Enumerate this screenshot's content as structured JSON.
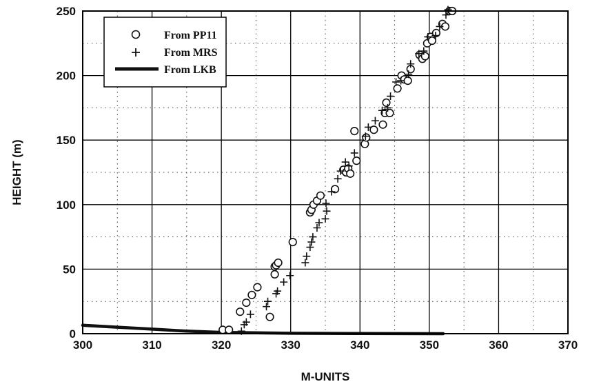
{
  "chart_data": {
    "type": "scatter",
    "title": "",
    "xlabel": "M-UNITS",
    "ylabel": "HEIGHT (m)",
    "xlim": [
      300,
      370
    ],
    "ylim": [
      0,
      250
    ],
    "xticks": [
      "300",
      "310",
      "320",
      "330",
      "340",
      "350",
      "360",
      "370"
    ],
    "yticks": [
      "0",
      "50",
      "100",
      "150",
      "200",
      "250"
    ],
    "grid": "major solid, minor dotted",
    "legend_position": "top-left",
    "series": [
      {
        "name": "From PP11",
        "marker": "circle",
        "points": [
          [
            320.2,
            3
          ],
          [
            321.1,
            3
          ],
          [
            322.7,
            17
          ],
          [
            323.6,
            24
          ],
          [
            324.4,
            30
          ],
          [
            325.2,
            36
          ],
          [
            327.0,
            13
          ],
          [
            327.7,
            46
          ],
          [
            327.7,
            52
          ],
          [
            327.9,
            53
          ],
          [
            328.2,
            55
          ],
          [
            330.3,
            71
          ],
          [
            332.8,
            94
          ],
          [
            333.0,
            96
          ],
          [
            333.3,
            100
          ],
          [
            333.8,
            103
          ],
          [
            334.3,
            107
          ],
          [
            336.4,
            112
          ],
          [
            337.6,
            127
          ],
          [
            338.0,
            125
          ],
          [
            338.3,
            128
          ],
          [
            338.6,
            124
          ],
          [
            339.2,
            157
          ],
          [
            339.5,
            134
          ],
          [
            340.7,
            147
          ],
          [
            340.9,
            152
          ],
          [
            342.0,
            158
          ],
          [
            343.3,
            162
          ],
          [
            343.6,
            171
          ],
          [
            343.8,
            179
          ],
          [
            344.3,
            171
          ],
          [
            345.4,
            190
          ],
          [
            346.0,
            200
          ],
          [
            346.4,
            197
          ],
          [
            346.9,
            196
          ],
          [
            347.3,
            205
          ],
          [
            348.6,
            216
          ],
          [
            349.0,
            213
          ],
          [
            349.4,
            215
          ],
          [
            349.7,
            225
          ],
          [
            350.2,
            230
          ],
          [
            350.4,
            227
          ],
          [
            351.0,
            233
          ],
          [
            351.9,
            240
          ],
          [
            352.3,
            238
          ],
          [
            352.9,
            250
          ],
          [
            353.3,
            250
          ]
        ]
      },
      {
        "name": "From MRS",
        "marker": "plus",
        "points": [
          [
            322.9,
            2
          ],
          [
            323.3,
            7
          ],
          [
            323.6,
            9
          ],
          [
            324.2,
            15
          ],
          [
            326.5,
            21
          ],
          [
            326.7,
            25
          ],
          [
            327.9,
            31
          ],
          [
            328.1,
            33
          ],
          [
            329.0,
            40
          ],
          [
            329.9,
            45
          ],
          [
            332.1,
            55
          ],
          [
            332.3,
            60
          ],
          [
            332.8,
            67
          ],
          [
            333.0,
            71
          ],
          [
            333.2,
            75
          ],
          [
            333.8,
            82
          ],
          [
            334.1,
            86
          ],
          [
            335.0,
            89
          ],
          [
            335.2,
            95
          ],
          [
            335.1,
            101
          ],
          [
            335.9,
            110
          ],
          [
            336.8,
            120
          ],
          [
            337.2,
            126
          ],
          [
            337.9,
            133
          ],
          [
            338.4,
            130
          ],
          [
            339.2,
            140
          ],
          [
            340.8,
            153
          ],
          [
            341.2,
            160
          ],
          [
            342.2,
            165
          ],
          [
            343.2,
            173
          ],
          [
            344.0,
            175
          ],
          [
            344.4,
            184
          ],
          [
            345.2,
            195
          ],
          [
            345.9,
            196
          ],
          [
            347.0,
            201
          ],
          [
            347.3,
            209
          ],
          [
            348.5,
            217
          ],
          [
            349.2,
            219
          ],
          [
            349.8,
            230
          ],
          [
            350.9,
            231
          ],
          [
            351.5,
            238
          ],
          [
            352.4,
            247
          ],
          [
            352.7,
            251
          ]
        ]
      },
      {
        "name": "From LKB",
        "marker": "thick-line",
        "points": [
          [
            300,
            6.5
          ],
          [
            305,
            5
          ],
          [
            310,
            3.5
          ],
          [
            315,
            2
          ],
          [
            320,
            1
          ],
          [
            330,
            0.3
          ],
          [
            340,
            0.1
          ],
          [
            352,
            0
          ]
        ]
      }
    ]
  }
}
